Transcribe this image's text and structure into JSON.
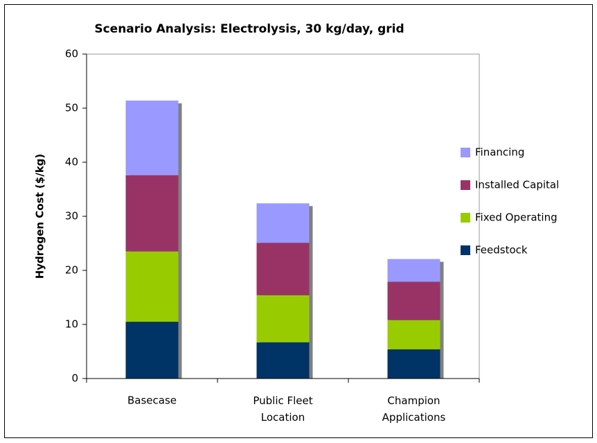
{
  "chart_data": {
    "type": "stacked_bar",
    "title": "Scenario Analysis: Electrolysis, 30 kg/day, grid",
    "y_label": "Hydrogen Cost ($/kg)",
    "categories": [
      "Basecase",
      "Public Fleet Location",
      "Champion Applications"
    ],
    "series": [
      {
        "name": "Feedstock",
        "color": "#003366",
        "values": [
          10.5,
          6.7,
          5.4
        ]
      },
      {
        "name": "Fixed Operating",
        "color": "#99cc00",
        "values": [
          13.0,
          8.7,
          5.4
        ]
      },
      {
        "name": "Installed Capital",
        "color": "#993366",
        "values": [
          14.1,
          9.7,
          7.1
        ]
      },
      {
        "name": "Financing",
        "color": "#9999ff",
        "values": [
          13.8,
          7.3,
          4.2
        ]
      }
    ],
    "ylim": [
      0,
      60
    ],
    "yticks": [
      0,
      10,
      20,
      30,
      40,
      50,
      60
    ],
    "legend": "right"
  }
}
